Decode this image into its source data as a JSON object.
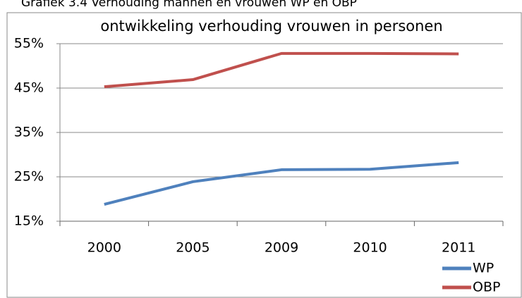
{
  "caption": "Grafiek 3.4      Verhouding mannen en vrouwen WP en OBP",
  "chart_data": {
    "type": "line",
    "title": "ontwikkeling verhouding vrouwen in personen",
    "categories": [
      "2000",
      "2005",
      "2009",
      "2010",
      "2011"
    ],
    "series": [
      {
        "name": "WP",
        "color": "#4f81bd",
        "values": [
          18.8,
          23.9,
          26.6,
          26.7,
          28.2
        ]
      },
      {
        "name": "OBP",
        "color": "#c0504d",
        "values": [
          45.3,
          46.9,
          52.8,
          52.8,
          52.7
        ]
      }
    ],
    "ylim": [
      15,
      55
    ],
    "yticks": [
      {
        "value": 15,
        "label": "15%"
      },
      {
        "value": 25,
        "label": "25%"
      },
      {
        "value": 35,
        "label": "35%"
      },
      {
        "value": 45,
        "label": "45%"
      },
      {
        "value": 55,
        "label": "55%"
      }
    ],
    "grid": true,
    "legend": "bottom-right"
  }
}
